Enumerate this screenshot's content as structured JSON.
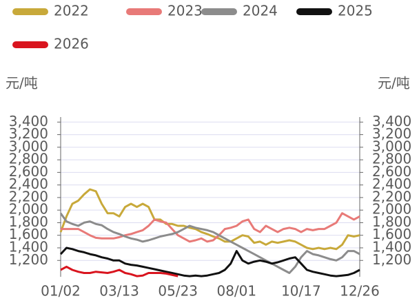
{
  "chart_data": {
    "type": "line",
    "y_unit_left": "元/吨",
    "y_unit_right": "元/吨",
    "categories": [
      "01/02",
      null,
      null,
      null,
      null,
      null,
      null,
      null,
      null,
      null,
      "03/13",
      null,
      null,
      null,
      null,
      null,
      null,
      null,
      null,
      null,
      "05/23",
      null,
      null,
      null,
      null,
      null,
      null,
      null,
      null,
      null,
      "08/01",
      null,
      null,
      null,
      null,
      null,
      null,
      null,
      null,
      null,
      null,
      "10/17",
      null,
      null,
      null,
      null,
      null,
      null,
      null,
      null,
      null,
      "12/26"
    ],
    "series": [
      {
        "name": "2022",
        "color": "#c8a93a",
        "values": [
          1650,
          1900,
          2100,
          2150,
          2250,
          2330,
          2300,
          2100,
          1950,
          1950,
          1900,
          2050,
          2100,
          2050,
          2100,
          2050,
          1850,
          1850,
          1780,
          1780,
          1750,
          1750,
          1720,
          1700,
          1650,
          1620,
          1580,
          1550,
          1500,
          1500,
          1550,
          1600,
          1580,
          1480,
          1500,
          1450,
          1500,
          1480,
          1500,
          1520,
          1500,
          1450,
          1400,
          1380,
          1400,
          1380,
          1400,
          1380,
          1450,
          1600,
          1580,
          1600
        ]
      },
      {
        "name": "2023",
        "color": "#e87a78",
        "values": [
          1700,
          1700,
          1700,
          1700,
          1650,
          1600,
          1560,
          1550,
          1550,
          1550,
          1570,
          1600,
          1620,
          1650,
          1680,
          1750,
          1850,
          1820,
          1800,
          1700,
          1600,
          1550,
          1500,
          1520,
          1550,
          1500,
          1520,
          1600,
          1700,
          1720,
          1750,
          1820,
          1850,
          1700,
          1650,
          1750,
          1700,
          1650,
          1700,
          1720,
          1700,
          1650,
          1700,
          1680,
          1700,
          1700,
          1750,
          1800,
          1950,
          1900,
          1850,
          1900
        ]
      },
      {
        "name": "2024",
        "color": "#8c8c8c",
        "values": [
          1950,
          1820,
          1780,
          1750,
          1800,
          1820,
          1780,
          1760,
          1700,
          1650,
          1620,
          1580,
          1550,
          1530,
          1500,
          1520,
          1550,
          1580,
          1600,
          1620,
          1650,
          1700,
          1750,
          1720,
          1700,
          1680,
          1650,
          1600,
          1550,
          1500,
          1450,
          1400,
          1350,
          1300,
          1250,
          1200,
          1150,
          1100,
          1050,
          1000,
          1100,
          1250,
          1350,
          1300,
          1280,
          1250,
          1220,
          1200,
          1250,
          1350,
          1350,
          1300
        ]
      },
      {
        "name": "2025",
        "color": "#111111",
        "values": [
          1300,
          1400,
          1380,
          1350,
          1330,
          1300,
          1280,
          1250,
          1230,
          1200,
          1200,
          1150,
          1130,
          1120,
          1100,
          1080,
          1060,
          1040,
          1020,
          1000,
          980,
          960,
          950,
          960,
          950,
          960,
          980,
          1000,
          1050,
          1150,
          1350,
          1200,
          1150,
          1180,
          1200,
          1180,
          1150,
          1170,
          1200,
          1230,
          1250,
          1150,
          1050,
          1020,
          1000,
          980,
          960,
          950,
          960,
          970,
          1000,
          1050
        ]
      },
      {
        "name": "2026",
        "color": "#d9141e",
        "values": [
          1050,
          1100,
          1050,
          1020,
          1000,
          1000,
          1020,
          1010,
          1000,
          1020,
          1050,
          1000,
          980,
          950,
          960,
          1000,
          1000,
          1000,
          990,
          970,
          950,
          null,
          null,
          null,
          null,
          null,
          null,
          null,
          null,
          null,
          null,
          null,
          null,
          null,
          null,
          null,
          null,
          null,
          null,
          null,
          null,
          null,
          null,
          null,
          null,
          null,
          null,
          null,
          null,
          null,
          null,
          null
        ]
      }
    ],
    "ylim": [
      940,
      3480
    ],
    "yticks": [
      {
        "value": 1200,
        "label": "1,200"
      },
      {
        "value": 1400,
        "label": "1,400"
      },
      {
        "value": 1600,
        "label": "1,600"
      },
      {
        "value": 1800,
        "label": "1,800"
      },
      {
        "value": 2000,
        "label": "2,000"
      },
      {
        "value": 2200,
        "label": "2,200"
      },
      {
        "value": 2400,
        "label": "2,400"
      },
      {
        "value": 2600,
        "label": "2,600"
      },
      {
        "value": 2800,
        "label": "2,800"
      },
      {
        "value": 3000,
        "label": "3,000"
      },
      {
        "value": 3200,
        "label": "3,200"
      },
      {
        "value": 3400,
        "label": "3,400"
      }
    ],
    "grid": true
  }
}
